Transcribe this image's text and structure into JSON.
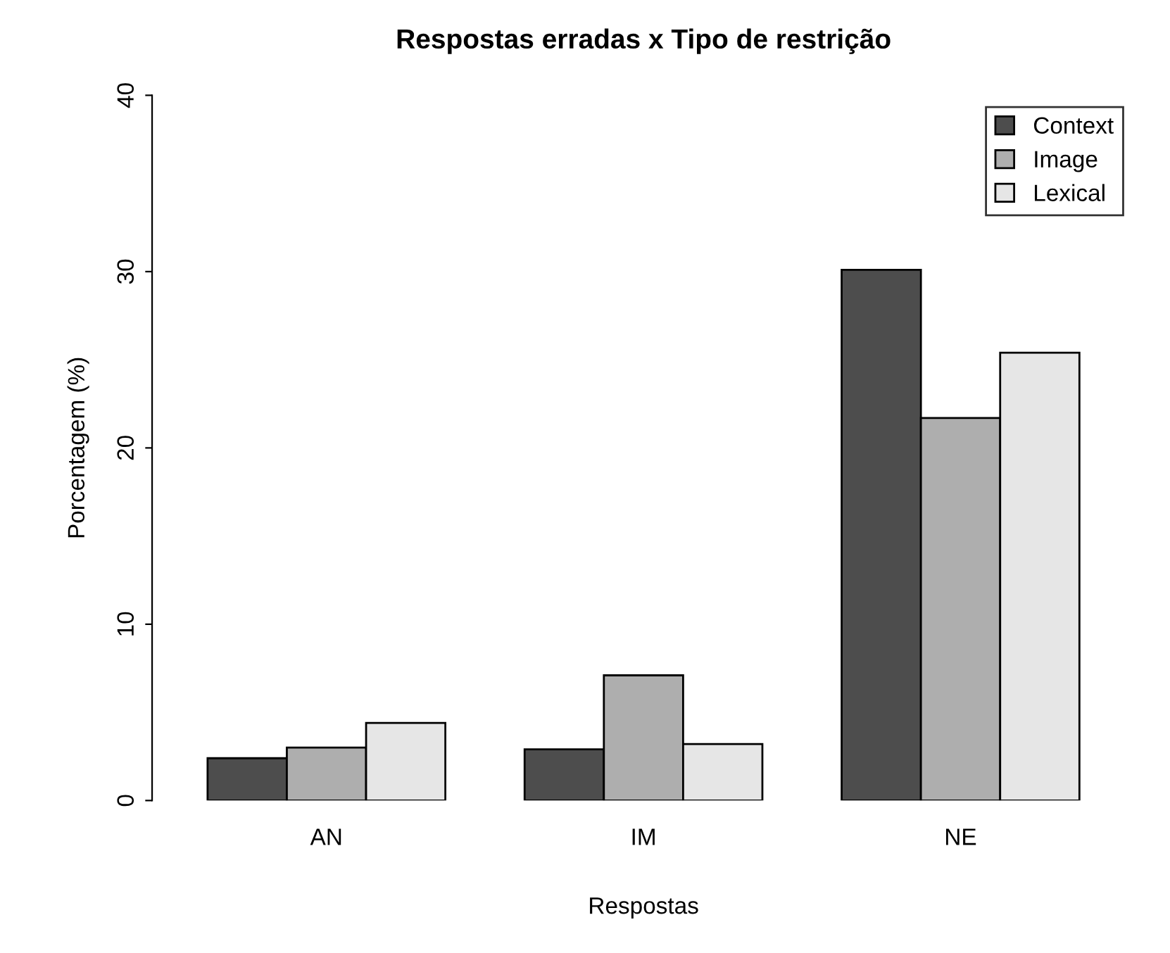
{
  "chart_data": {
    "type": "bar",
    "title": "Respostas erradas x Tipo de restrição",
    "xlabel": "Respostas",
    "ylabel": "Porcentagem (%)",
    "categories": [
      "AN",
      "IM",
      "NE"
    ],
    "series": [
      {
        "name": "Context",
        "color": "#4d4d4d",
        "values": [
          2.4,
          2.9,
          30.1
        ]
      },
      {
        "name": "Image",
        "color": "#aeaeae",
        "values": [
          3.0,
          7.1,
          21.7
        ]
      },
      {
        "name": "Lexical",
        "color": "#e6e6e6",
        "values": [
          4.4,
          3.2,
          25.4
        ]
      }
    ],
    "ylim": [
      0,
      40
    ],
    "yticks": [
      0,
      10,
      20,
      30,
      40
    ],
    "grid": false,
    "legend": "top right"
  }
}
